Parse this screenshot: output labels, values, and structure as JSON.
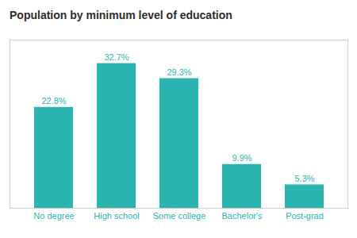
{
  "chart_data": {
    "type": "bar",
    "title": "Population by minimum level of education",
    "categories": [
      "No degree",
      "High school",
      "Some college",
      "Bachelor's",
      "Post-grad"
    ],
    "values": [
      22.8,
      32.7,
      29.3,
      9.9,
      5.3
    ],
    "value_labels": [
      "22.8%",
      "32.7%",
      "29.3%",
      "9.9%",
      "5.3%"
    ],
    "color": "#2ab5b0",
    "ylim": [
      0,
      38
    ],
    "tick_labels": "x",
    "data_labels": true
  }
}
